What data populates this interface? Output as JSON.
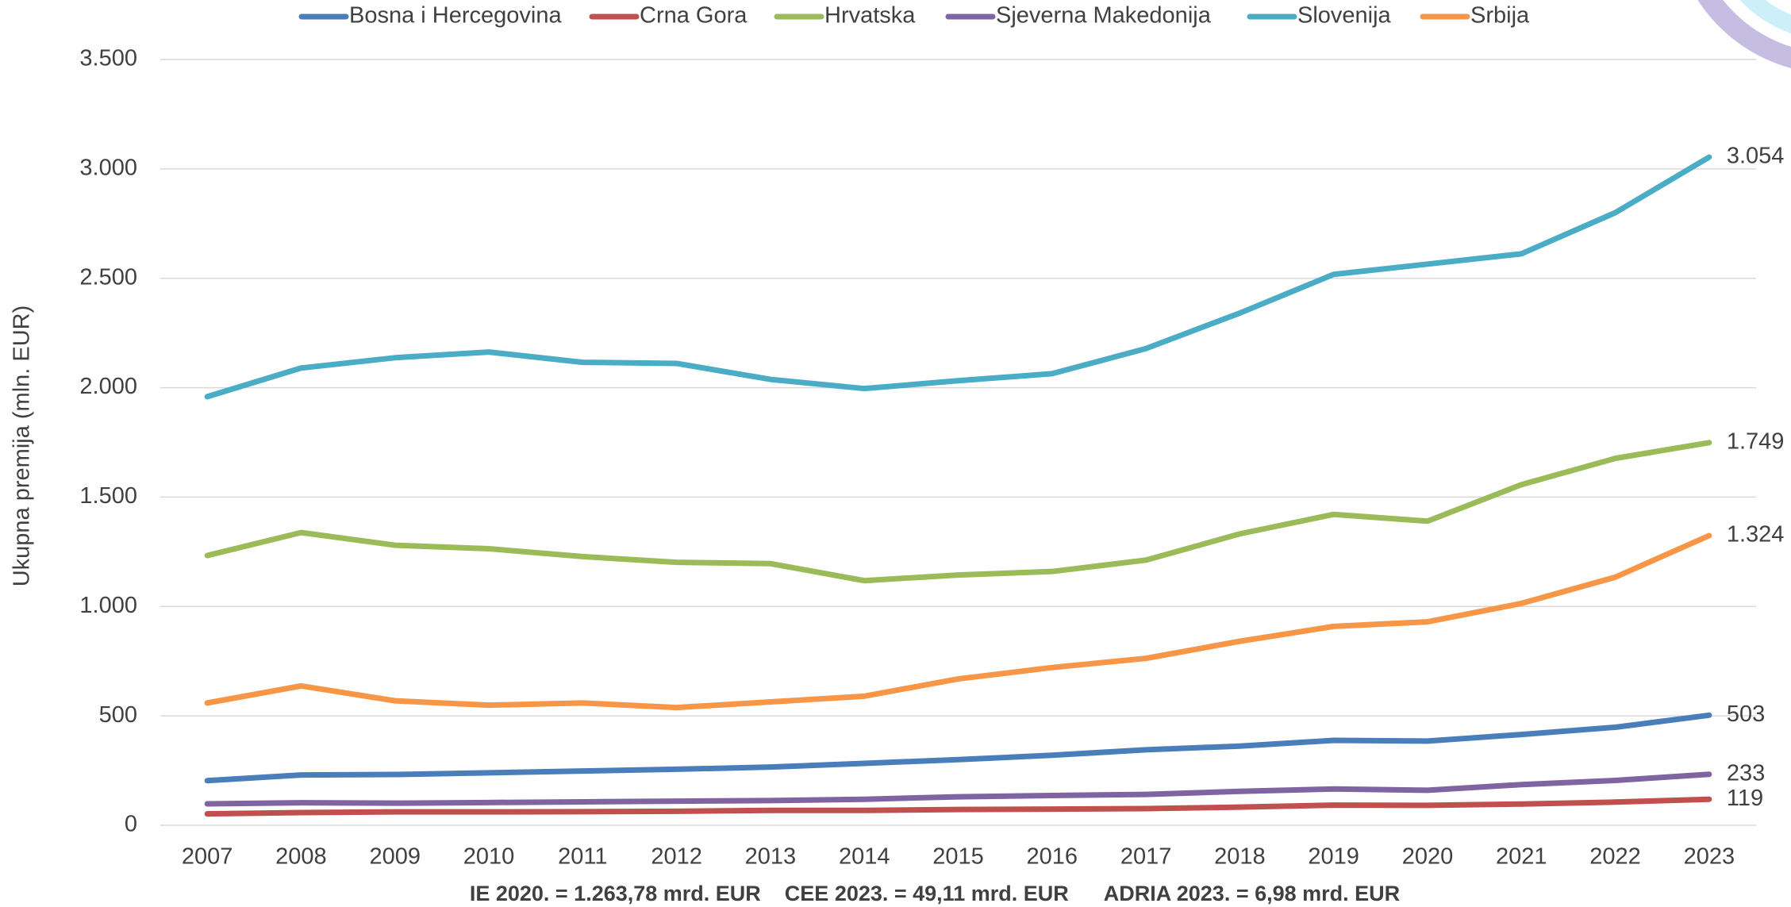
{
  "chart_data": {
    "type": "line",
    "ylabel": "Ukupna premija (mln. EUR)",
    "note": "IE 2020. = 1.263,78 mrd. EUR    CEE 2023. = 49,11 mrd. EUR      ADRIA 2023. = 6,98 mrd. EUR",
    "categories": [
      "2007",
      "2008",
      "2009",
      "2010",
      "2011",
      "2012",
      "2013",
      "2014",
      "2015",
      "2016",
      "2017",
      "2018",
      "2019",
      "2020",
      "2021",
      "2022",
      "2023"
    ],
    "ylim": [
      0,
      3500
    ],
    "yticks": [
      0,
      500,
      {
        "value": 1000,
        "label": "1.000"
      },
      {
        "value": 1500,
        "label": "1.500"
      },
      {
        "value": 2000,
        "label": "2.000"
      },
      {
        "value": 2500,
        "label": "2.500"
      },
      {
        "value": 3000,
        "label": "3.000"
      },
      {
        "value": 3500,
        "label": "3.500"
      }
    ],
    "grid": true,
    "legend": "top",
    "series": [
      {
        "name": "Bosna i Hercegovina",
        "color": "#4a7ebb",
        "values": [
          204,
          230,
          232,
          240,
          248,
          256,
          266,
          283,
          300,
          320,
          345,
          362,
          388,
          385,
          415,
          448,
          503
        ],
        "value_labels": [
          null,
          null,
          null,
          null,
          null,
          null,
          null,
          null,
          null,
          null,
          null,
          null,
          null,
          null,
          null,
          null,
          "503"
        ]
      },
      {
        "name": "Crna Gora",
        "color": "#c0504d",
        "values": [
          52,
          58,
          61,
          61,
          62,
          64,
          68,
          68,
          72,
          74,
          76,
          83,
          92,
          91,
          97,
          106,
          119
        ],
        "value_labels": [
          null,
          null,
          null,
          null,
          null,
          null,
          null,
          null,
          null,
          null,
          null,
          null,
          null,
          null,
          null,
          null,
          "119"
        ]
      },
      {
        "name": "Hrvatska",
        "color": "#9bbb59",
        "values": [
          1233,
          1338,
          1280,
          1264,
          1228,
          1202,
          1196,
          1118,
          1144,
          1160,
          1212,
          1332,
          1421,
          1390,
          1557,
          1677,
          1749
        ],
        "value_labels": [
          null,
          null,
          null,
          null,
          null,
          null,
          null,
          null,
          null,
          null,
          null,
          null,
          null,
          null,
          null,
          null,
          "1.749"
        ]
      },
      {
        "name": "Sjeverna Makedonija",
        "color": "#8064a2",
        "values": [
          98,
          103,
          101,
          104,
          107,
          110,
          113,
          119,
          130,
          136,
          141,
          155,
          166,
          160,
          186,
          205,
          233
        ],
        "value_labels": [
          null,
          null,
          null,
          null,
          null,
          null,
          null,
          null,
          null,
          null,
          null,
          null,
          null,
          null,
          null,
          null,
          "233"
        ]
      },
      {
        "name": "Slovenija",
        "color": "#4bacc6",
        "values": [
          1959,
          2090,
          2137,
          2163,
          2116,
          2111,
          2038,
          1996,
          2032,
          2064,
          2179,
          2341,
          2518,
          2565,
          2612,
          2800,
          3054
        ],
        "value_labels": [
          null,
          null,
          null,
          null,
          null,
          null,
          null,
          null,
          null,
          null,
          null,
          null,
          null,
          null,
          null,
          null,
          "3.054"
        ]
      },
      {
        "name": "Srbija",
        "color": "#f79646",
        "values": [
          559,
          637,
          569,
          549,
          559,
          538,
          564,
          590,
          669,
          721,
          763,
          841,
          909,
          930,
          1014,
          1134,
          1324
        ],
        "value_labels": [
          null,
          null,
          null,
          null,
          null,
          null,
          null,
          null,
          null,
          null,
          null,
          null,
          null,
          null,
          null,
          null,
          "1.324"
        ]
      }
    ]
  }
}
